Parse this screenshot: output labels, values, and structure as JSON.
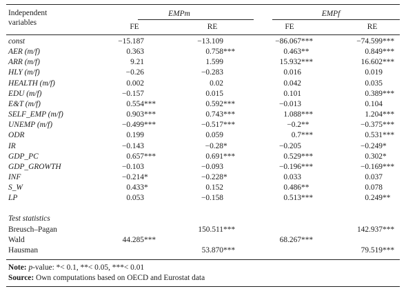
{
  "header": {
    "label_line1": "Independent",
    "label_line2": "variables",
    "group1": "EMPm",
    "group2": "EMPf",
    "fe": "FE",
    "re": "RE"
  },
  "rows": [
    {
      "label": "const",
      "v": [
        "−15.187",
        "−13.109",
        "−86.067***",
        "−74.599***"
      ]
    },
    {
      "label": "AER (m/f)",
      "v": [
        "0.363",
        "0.758***",
        "0.463**",
        "0.849***"
      ]
    },
    {
      "label": "ARR (m/f)",
      "v": [
        "9.21",
        "1.599",
        "15.932***",
        "16.602***"
      ]
    },
    {
      "label": "HLY (m/f)",
      "v": [
        "−0.26",
        "−0.283",
        "0.016",
        "0.019"
      ]
    },
    {
      "label": "HEALTH (m/f)",
      "v": [
        "0.002",
        "0.02",
        "0.042",
        "0.035"
      ]
    },
    {
      "label": "EDU (m/f)",
      "v": [
        "−0.157",
        "0.015",
        "0.101",
        "0.389***"
      ]
    },
    {
      "label": "E&T (m/f)",
      "v": [
        "0.554***",
        "0.592***",
        "−0.013",
        "0.104"
      ]
    },
    {
      "label": "SELF_EMP (m/f)",
      "v": [
        "0.903***",
        "0.743***",
        "1.088***",
        "1.204***"
      ]
    },
    {
      "label": "UNEMP (m/f)",
      "v": [
        "−0.499***",
        "−0.517***",
        "−0.2**",
        "−0.375***"
      ]
    },
    {
      "label": "ODR",
      "v": [
        "0.199",
        "0.059",
        "0.7***",
        "0.531***"
      ]
    },
    {
      "label": "IR",
      "v": [
        "−0.143",
        "−0.28*",
        "−0.205",
        "−0.249*"
      ]
    },
    {
      "label": "GDP_PC",
      "v": [
        "0.657***",
        "0.691***",
        "0.529***",
        "0.302*"
      ]
    },
    {
      "label": "GDP_GROWTH",
      "v": [
        "−0.103",
        "−0.093",
        "−0.196***",
        "−0.169***"
      ]
    },
    {
      "label": "INF",
      "v": [
        "−0.214*",
        "−0.228*",
        "0.033",
        "0.037"
      ]
    },
    {
      "label": "S_W",
      "v": [
        "0.433*",
        "0.152",
        "0.486**",
        "0.078"
      ]
    },
    {
      "label": "LP",
      "v": [
        "0.053",
        "−0.158",
        "0.513***",
        "0.249**"
      ]
    }
  ],
  "test_statistics": {
    "title": "Test statistics",
    "rows": [
      {
        "label": "Breusch–Pagan",
        "v": [
          "",
          "150.511***",
          "",
          "142.937***"
        ]
      },
      {
        "label": "Wald",
        "v": [
          "44.285***",
          "",
          "68.267***",
          ""
        ]
      },
      {
        "label": "Hausman",
        "v": [
          "",
          "53.870***",
          "",
          "79.519***"
        ]
      }
    ]
  },
  "notes": {
    "note_label": "Note:",
    "note_p": "p",
    "note_text": "-value: *< 0.1, **< 0.05, ***< 0.01",
    "source_label": "Source:",
    "source_text": " Own computations based on OECD and Eurostat data"
  }
}
